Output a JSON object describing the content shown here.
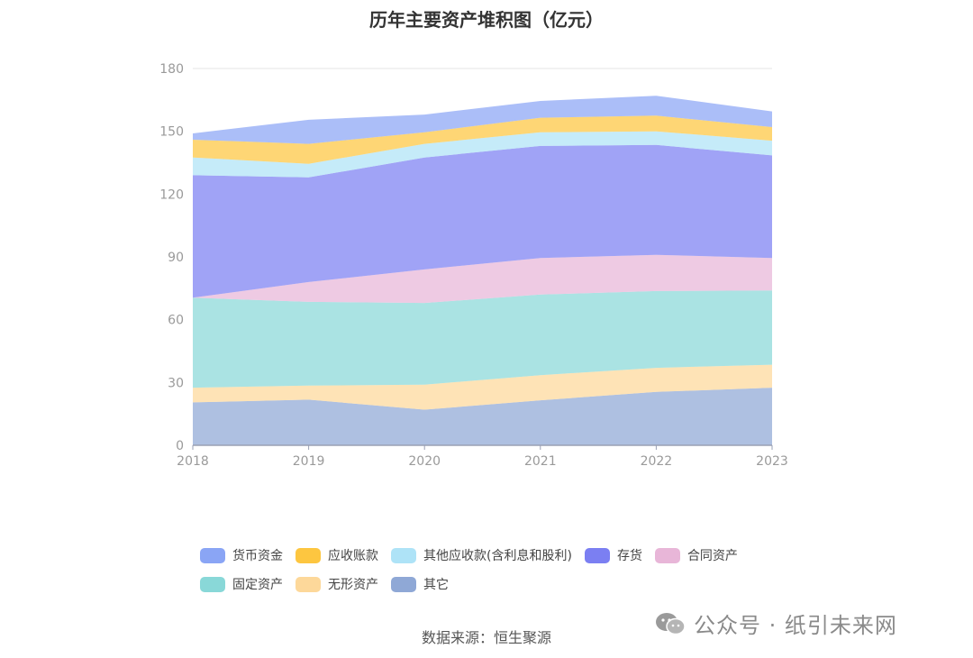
{
  "chart_data": {
    "type": "area",
    "stacked": true,
    "title": "历年主要资产堆积图（亿元）",
    "x": [
      "2018",
      "2019",
      "2020",
      "2021",
      "2022",
      "2023"
    ],
    "ylim": [
      0,
      180
    ],
    "yticks": [
      0,
      30,
      60,
      90,
      120,
      150,
      180
    ],
    "xlabel": "",
    "ylabel": "",
    "grid": false,
    "legend_position": "bottom",
    "series": [
      {
        "name": "其它",
        "color": "#8fa8d6",
        "values": [
          20.5,
          21.8,
          17.0,
          21.5,
          25.5,
          27.5
        ]
      },
      {
        "name": "无形资产",
        "color": "#fdd89a",
        "values": [
          7.0,
          6.7,
          12.0,
          12.0,
          11.5,
          11.0
        ]
      },
      {
        "name": "固定资产",
        "color": "#89d8d8",
        "values": [
          43.0,
          40.0,
          39.0,
          38.5,
          36.7,
          35.5
        ]
      },
      {
        "name": "合同资产",
        "color": "#e8b6d8",
        "values": [
          0.0,
          9.5,
          16.0,
          17.5,
          17.3,
          15.5
        ]
      },
      {
        "name": "存货",
        "color": "#7b7ff2",
        "values": [
          58.5,
          50.0,
          53.5,
          53.5,
          52.5,
          49.0
        ]
      },
      {
        "name": "其他应收款(含利息和股利)",
        "color": "#aee3f7",
        "values": [
          8.5,
          6.5,
          6.5,
          6.5,
          6.5,
          7.0
        ]
      },
      {
        "name": "应收账款",
        "color": "#fdc640",
        "values": [
          8.5,
          9.5,
          5.5,
          7.0,
          7.5,
          6.5
        ]
      },
      {
        "name": "货币资金",
        "color": "#8aa5f5",
        "values": [
          3.0,
          11.5,
          8.5,
          8.0,
          9.5,
          7.5
        ]
      }
    ]
  },
  "legend": {
    "row1": [
      {
        "name": "货币资金",
        "color": "#8aa5f5"
      },
      {
        "name": "应收账款",
        "color": "#fdc640"
      },
      {
        "name": "其他应收款(含利息和股利)",
        "color": "#aee3f7"
      },
      {
        "name": "存货",
        "color": "#7b7ff2"
      },
      {
        "name": "合同资产",
        "color": "#e8b6d8"
      }
    ],
    "row2": [
      {
        "name": "固定资产",
        "color": "#89d8d8"
      },
      {
        "name": "无形资产",
        "color": "#fdd89a"
      },
      {
        "name": "其它",
        "color": "#8fa8d6"
      }
    ]
  },
  "source": "数据来源：恒生聚源",
  "watermark": {
    "text": "公众号 · 纸引未来网",
    "icon": "wechat-icon"
  }
}
